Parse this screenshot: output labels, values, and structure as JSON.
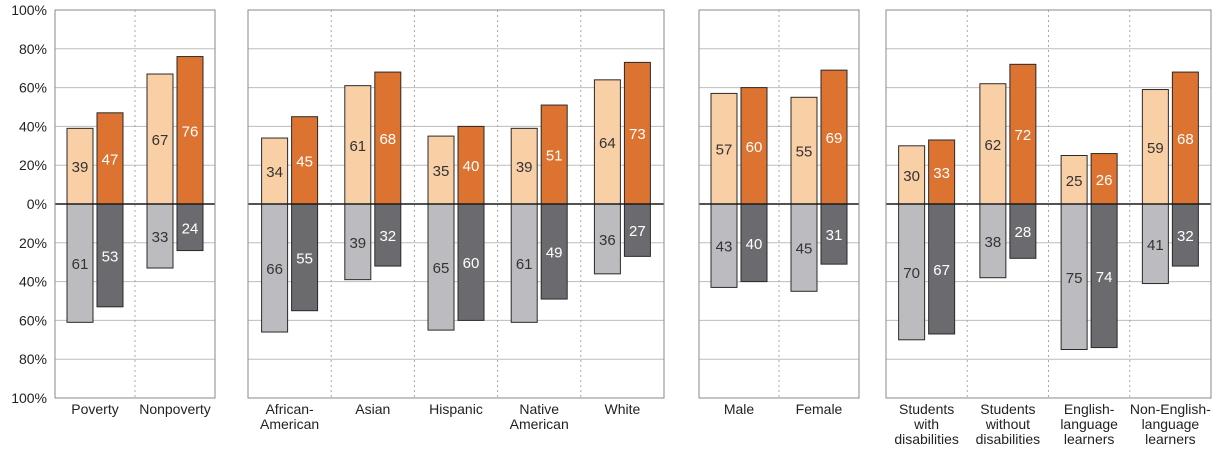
{
  "chart_data": {
    "type": "bar",
    "title": "",
    "xlabel": "",
    "ylabel": "",
    "ylim": [
      -100,
      100
    ],
    "y_ticks": [
      {
        "value": 100,
        "label": "100%"
      },
      {
        "value": 80,
        "label": "80%"
      },
      {
        "value": 60,
        "label": "60%"
      },
      {
        "value": 40,
        "label": "40%"
      },
      {
        "value": 20,
        "label": "20%"
      },
      {
        "value": 0,
        "label": "0%"
      },
      {
        "value": -20,
        "label": "20%"
      },
      {
        "value": -40,
        "label": "40%"
      },
      {
        "value": -60,
        "label": "60%"
      },
      {
        "value": -80,
        "label": "80%"
      },
      {
        "value": -100,
        "label": "100%"
      }
    ],
    "grid": true,
    "legend": "none",
    "colors": {
      "above_light": "#f9cfa6",
      "above_dark": "#dd7330",
      "below_light": "#bcbcc0",
      "below_dark": "#6b6b6f"
    },
    "panels": [
      {
        "categories": [
          {
            "label_lines": [
              "Poverty"
            ],
            "above": [
              39,
              47
            ],
            "below": [
              61,
              53
            ]
          },
          {
            "label_lines": [
              "Nonpoverty"
            ],
            "above": [
              67,
              76
            ],
            "below": [
              33,
              24
            ]
          }
        ]
      },
      {
        "categories": [
          {
            "label_lines": [
              "African-",
              "American"
            ],
            "above": [
              34,
              45
            ],
            "below": [
              66,
              55
            ]
          },
          {
            "label_lines": [
              "Asian"
            ],
            "above": [
              61,
              68
            ],
            "below": [
              39,
              32
            ]
          },
          {
            "label_lines": [
              "Hispanic"
            ],
            "above": [
              35,
              40
            ],
            "below": [
              65,
              60
            ]
          },
          {
            "label_lines": [
              "Native",
              "American"
            ],
            "above": [
              39,
              51
            ],
            "below": [
              61,
              49
            ]
          },
          {
            "label_lines": [
              "White"
            ],
            "above": [
              64,
              73
            ],
            "below": [
              36,
              27
            ]
          }
        ]
      },
      {
        "categories": [
          {
            "label_lines": [
              "Male"
            ],
            "above": [
              57,
              60
            ],
            "below": [
              43,
              40
            ]
          },
          {
            "label_lines": [
              "Female"
            ],
            "above": [
              55,
              69
            ],
            "below": [
              45,
              31
            ]
          }
        ]
      },
      {
        "categories": [
          {
            "label_lines": [
              "Students",
              "with",
              "disabilities"
            ],
            "above": [
              30,
              33
            ],
            "below": [
              70,
              67
            ]
          },
          {
            "label_lines": [
              "Students",
              "without",
              "disabilities"
            ],
            "above": [
              62,
              72
            ],
            "below": [
              38,
              28
            ]
          },
          {
            "label_lines": [
              "English-",
              "language",
              "learners"
            ],
            "above": [
              25,
              26
            ],
            "below": [
              75,
              74
            ]
          },
          {
            "label_lines": [
              "Non-English-",
              "language",
              "learners"
            ],
            "above": [
              59,
              68
            ],
            "below": [
              41,
              32
            ]
          }
        ]
      }
    ]
  }
}
